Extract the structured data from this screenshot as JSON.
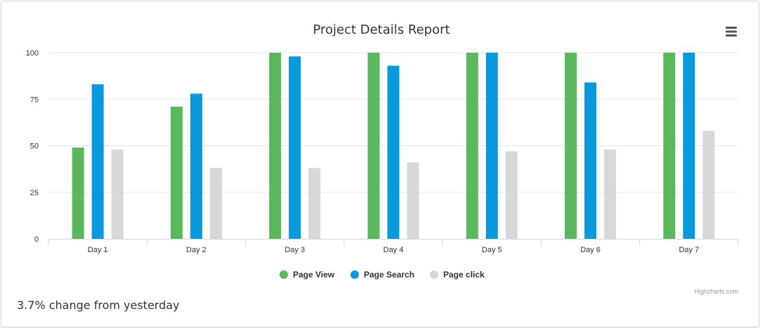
{
  "menu_icon": "hamburger-menu-icon",
  "credits": "Highcharts.com",
  "footer": {
    "change_text": "3.7% change from yesterday"
  },
  "chart_data": {
    "type": "bar",
    "title": "Project Details Report",
    "categories": [
      "Day 1",
      "Day 2",
      "Day 3",
      "Day 4",
      "Day 5",
      "Day 6",
      "Day 7"
    ],
    "series": [
      {
        "name": "Page View",
        "color": "#5cb85c",
        "values": [
          49,
          71,
          100,
          100,
          100,
          100,
          100
        ]
      },
      {
        "name": "Page Search",
        "color": "#0a99dd",
        "values": [
          83,
          78,
          98,
          93,
          100,
          84,
          100
        ]
      },
      {
        "name": "Page click",
        "color": "#d8d8d8",
        "values": [
          48,
          38,
          38,
          41,
          47,
          48,
          58
        ]
      }
    ],
    "ylim": [
      0,
      100
    ],
    "yticks": [
      0,
      25,
      50,
      75,
      100
    ],
    "xlabel": "",
    "ylabel": "",
    "grid": true,
    "legend_position": "bottom-center"
  }
}
